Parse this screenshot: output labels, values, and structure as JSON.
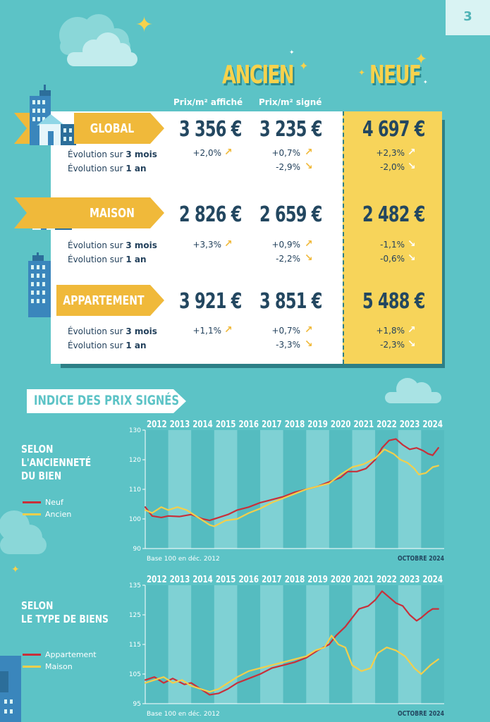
{
  "page": {
    "number": "3"
  },
  "headers": {
    "ancien": "ANCIEN",
    "neuf": "NEUF",
    "col_affiche": "Prix/m² affiché",
    "col_signe": "Prix/m² signé"
  },
  "rows": [
    {
      "label": "GLOBAL",
      "affiche": "3 356 €",
      "signe": "3 235 €",
      "neuf": "4 697 €",
      "evo3_label": "Évolution sur ",
      "evo3_bold": "3 mois",
      "evo1_label": "Évolution sur ",
      "evo1_bold": "1 an",
      "affiche_3m": "+2,0%",
      "signe_3m": "+0,7%",
      "signe_1a": "-2,9%",
      "neuf_3m": "+2,3%",
      "neuf_1a": "-2,0%"
    },
    {
      "label": "MAISON",
      "affiche": "2 826 €",
      "signe": "2 659 €",
      "neuf": "2 482 €",
      "evo3_label": "Évolution sur ",
      "evo3_bold": "3 mois",
      "evo1_label": "Évolution sur ",
      "evo1_bold": "1 an",
      "affiche_3m": "+3,3%",
      "signe_3m": "+0,9%",
      "signe_1a": "-2,2%",
      "neuf_3m": "-1,1%",
      "neuf_1a": "-0,6%"
    },
    {
      "label": "APPARTEMENT",
      "affiche": "3 921 €",
      "signe": "3 851 €",
      "neuf": "5 488 €",
      "evo3_label": "Évolution sur ",
      "evo3_bold": "3 mois",
      "evo1_label": "Évolution sur ",
      "evo1_bold": "1 an",
      "affiche_3m": "+1,1%",
      "signe_3m": "+0,7%",
      "signe_1a": "-3,3%",
      "neuf_3m": "+1,8%",
      "neuf_1a": "-2,3%"
    }
  ],
  "arrows": {
    "up": "↗",
    "down": "↘"
  },
  "section_title": "INDICE DES PRIX SIGNÉS",
  "colors": {
    "red": "#c8303a",
    "yellow": "#f2cf4c",
    "teal": "#5cc3c6",
    "gold": "#f0b93a",
    "navy": "#234760"
  },
  "chart_data": [
    {
      "type": "line",
      "label_lines": [
        "SELON",
        "L'ANCIENNETÉ",
        "DU BIEN"
      ],
      "years": [
        "2012",
        "2013",
        "2014",
        "2015",
        "2016",
        "2017",
        "2018",
        "2019",
        "2020",
        "2021",
        "2022",
        "2023",
        "2024"
      ],
      "ylim": [
        90,
        130
      ],
      "yticks": [
        90,
        100,
        110,
        120,
        130
      ],
      "footnote": "Base 100 en déc. 2012",
      "date_label": "OCTOBRE 2024",
      "series": [
        {
          "name": "Neuf",
          "color": "#c8303a",
          "x": [
            2012.0,
            2012.3,
            2012.7,
            2013.0,
            2013.5,
            2014.0,
            2014.5,
            2014.8,
            2015.2,
            2015.6,
            2016.0,
            2016.5,
            2017.0,
            2017.5,
            2018.0,
            2018.5,
            2019.0,
            2019.5,
            2020.0,
            2020.5,
            2020.8,
            2021.2,
            2021.6,
            2022.0,
            2022.3,
            2022.6,
            2022.9,
            2023.2,
            2023.5,
            2023.8,
            2024.1,
            2024.3,
            2024.5,
            2024.75
          ],
          "values": [
            104,
            101,
            100.5,
            101,
            100.8,
            101.5,
            100,
            99.5,
            100.5,
            101.5,
            103,
            104,
            105.5,
            106.5,
            107.5,
            109,
            110,
            111,
            112.5,
            114,
            116,
            116,
            117,
            120,
            124,
            126.5,
            127,
            125,
            123.5,
            124,
            123,
            122,
            121.5,
            124
          ]
        },
        {
          "name": "Ancien",
          "color": "#f2cf4c",
          "x": [
            2012.0,
            2012.3,
            2012.7,
            2013.0,
            2013.4,
            2013.8,
            2014.2,
            2014.5,
            2014.8,
            2015.0,
            2015.5,
            2016.0,
            2016.5,
            2017.0,
            2017.5,
            2018.0,
            2018.5,
            2019.0,
            2019.5,
            2020.0,
            2020.5,
            2021.0,
            2021.5,
            2022.0,
            2022.4,
            2022.8,
            2023.1,
            2023.4,
            2023.7,
            2023.9,
            2024.2,
            2024.5,
            2024.75
          ],
          "values": [
            103,
            102,
            104,
            103,
            104,
            103,
            101,
            99.5,
            98,
            97.5,
            99.5,
            100,
            102,
            103.5,
            105.5,
            107,
            108.5,
            110,
            111,
            112,
            115,
            117.5,
            118.5,
            120.5,
            123.5,
            122,
            120,
            119,
            117,
            115,
            115.5,
            117.5,
            118
          ]
        }
      ]
    },
    {
      "type": "line",
      "label_lines": [
        "SELON",
        "LE TYPE DE BIENS"
      ],
      "years": [
        "2012",
        "2013",
        "2014",
        "2015",
        "2016",
        "2017",
        "2018",
        "2019",
        "2020",
        "2021",
        "2022",
        "2023",
        "2024"
      ],
      "ylim": [
        95,
        135
      ],
      "yticks": [
        95,
        105,
        115,
        125,
        135
      ],
      "footnote": "Base 100 en déc. 2012",
      "date_label": "OCTOBRE 2024",
      "series": [
        {
          "name": "Appartement",
          "color": "#c8303a",
          "x": [
            2012.0,
            2012.4,
            2012.8,
            2013.2,
            2013.7,
            2014.0,
            2014.4,
            2014.8,
            2015.2,
            2015.6,
            2016.0,
            2016.5,
            2017.0,
            2017.5,
            2018.0,
            2018.5,
            2019.0,
            2019.5,
            2020.0,
            2020.3,
            2020.7,
            2021.0,
            2021.3,
            2021.7,
            2022.0,
            2022.3,
            2022.6,
            2022.9,
            2023.2,
            2023.5,
            2023.8,
            2024.0,
            2024.3,
            2024.5,
            2024.75
          ],
          "values": [
            103,
            104,
            102,
            103.5,
            101.5,
            102,
            100,
            98,
            98.5,
            100,
            102,
            103.5,
            105,
            107,
            108,
            109,
            110.5,
            113,
            115,
            118,
            121,
            124,
            127,
            128,
            130,
            133,
            131,
            129,
            128,
            125,
            123,
            124,
            126,
            127,
            127
          ]
        },
        {
          "name": "Maison",
          "color": "#f2cf4c",
          "x": [
            2012.0,
            2012.4,
            2012.8,
            2013.2,
            2013.6,
            2014.0,
            2014.4,
            2014.8,
            2015.2,
            2015.6,
            2016.0,
            2016.5,
            2017.0,
            2017.5,
            2018.0,
            2018.5,
            2019.0,
            2019.4,
            2019.8,
            2020.1,
            2020.4,
            2020.7,
            2021.0,
            2021.4,
            2021.8,
            2022.1,
            2022.5,
            2022.9,
            2023.3,
            2023.7,
            2024.0,
            2024.4,
            2024.75
          ],
          "values": [
            102,
            103,
            104,
            102,
            103,
            101,
            100,
            99,
            100,
            102,
            104,
            106,
            107,
            108,
            109,
            110,
            111,
            113,
            114,
            118,
            115,
            114,
            108,
            106,
            107,
            112,
            114,
            113,
            111,
            107,
            105,
            108,
            110
          ]
        }
      ]
    }
  ]
}
